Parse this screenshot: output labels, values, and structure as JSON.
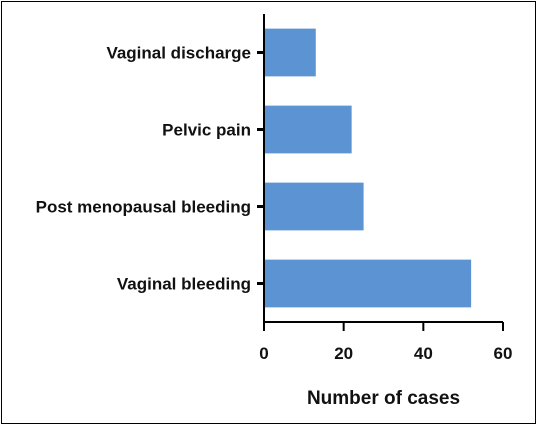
{
  "chart_data": {
    "type": "bar",
    "orientation": "horizontal",
    "categories": [
      "Vaginal discharge",
      "Pelvic pain",
      "Post menopausal bleeding",
      "Vaginal bleeding"
    ],
    "values": [
      13,
      22,
      25,
      52
    ],
    "xlabel": "Number of cases",
    "ylabel": "",
    "xlim": [
      0,
      60
    ],
    "xticks": [
      "0",
      "20",
      "40",
      "60"
    ],
    "grid": false,
    "bar_color": "#5b93d3"
  }
}
